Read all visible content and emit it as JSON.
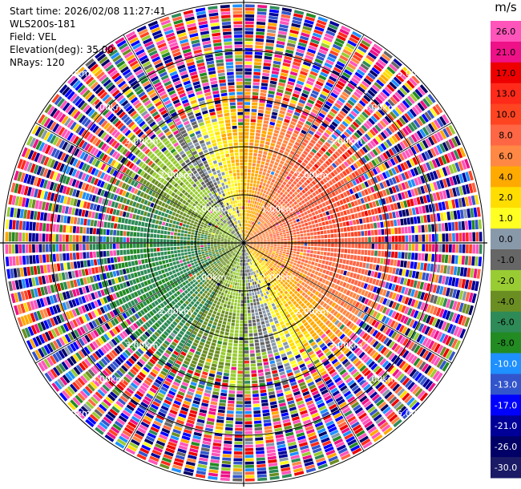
{
  "info": {
    "start_time": "Start time: 2026/02/08 11:27:41",
    "instrument": "WLS200s-181",
    "field": "Field: VEL",
    "elevation": "Elevation(deg): 35.00",
    "nrays": "NRays: 120"
  },
  "colorbar": {
    "unit": "m/s",
    "ticks": [
      "26.0",
      "21.0",
      "17.0",
      "13.0",
      "10.0",
      "8.0",
      "6.0",
      "4.0",
      "2.0",
      "1.0",
      "0.0",
      "-1.0",
      "-2.0",
      "-4.0",
      "-6.0",
      "-8.0",
      "-10.0",
      "-13.0",
      "-17.0",
      "-21.0",
      "-26.0",
      "-30.0"
    ],
    "colors": [
      "#ff55bb",
      "#ee1188",
      "#ee0000",
      "#ff2a1a",
      "#ff4422",
      "#ff6644",
      "#ff8844",
      "#ffaa00",
      "#ffdd00",
      "#ffff22",
      "#8899aa",
      "#666666",
      "#99cc33",
      "#6b8e23",
      "#2e8b57",
      "#228b22",
      "#1e90ff",
      "#3355cc",
      "#0000ff",
      "#000099",
      "#000066",
      "#1a1a66"
    ]
  },
  "chart_data": {
    "type": "ppi",
    "field": "VEL",
    "unit": "m/s",
    "nrays": 120,
    "elevation_deg": 35.0,
    "range_max_km": 5.0,
    "range_rings_km": [
      1.0,
      2.0,
      3.0,
      4.0,
      5.0
    ],
    "ring_labels": [
      "1.00km",
      "2.00km",
      "3.00km",
      "4.00km",
      "5.00km"
    ],
    "pattern": {
      "wind_from_deg": 250,
      "peak_velocity_ms": 8,
      "clean_range_km": 2.3,
      "noisy_range_km": 3.2
    }
  }
}
